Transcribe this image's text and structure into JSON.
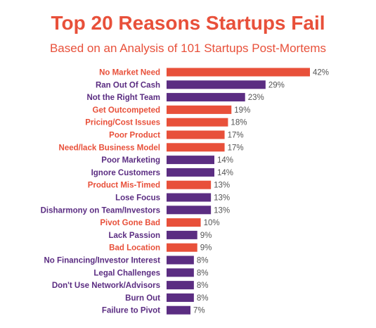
{
  "colors": {
    "accent": "#e8503a",
    "purple": "#5b2d82",
    "value_text": "#555555"
  },
  "chart_data": {
    "type": "bar",
    "orientation": "horizontal",
    "title": "Top 20 Reasons Startups Fail",
    "subtitle": "Based on an Analysis of 101 Startups Post-Mortems",
    "xlabel": "",
    "ylabel": "",
    "xlim": [
      0,
      42
    ],
    "grid": false,
    "legend": "none",
    "value_suffix": "%",
    "categories": [
      "No Market Need",
      "Ran Out Of Cash",
      "Not the Right Team",
      "Get Outcompeted",
      "Pricing/Cost Issues",
      "Poor Product",
      "Need/lack Business Model",
      "Poor Marketing",
      "Ignore Customers",
      "Product Mis-Timed",
      "Lose Focus",
      "Disharmony on Team/Investors",
      "Pivot Gone Bad",
      "Lack Passion",
      "Bad Location",
      "No Financing/Investor Interest",
      "Legal Challenges",
      "Don't Use Network/Advisors",
      "Burn Out",
      "Failure to Pivot"
    ],
    "values": [
      42,
      29,
      23,
      19,
      18,
      17,
      17,
      14,
      14,
      13,
      13,
      13,
      10,
      9,
      9,
      8,
      8,
      8,
      8,
      7
    ],
    "bar_colors": [
      "accent",
      "purple",
      "purple",
      "accent",
      "accent",
      "accent",
      "accent",
      "purple",
      "purple",
      "accent",
      "purple",
      "purple",
      "accent",
      "purple",
      "accent",
      "purple",
      "purple",
      "purple",
      "purple",
      "purple"
    ]
  }
}
